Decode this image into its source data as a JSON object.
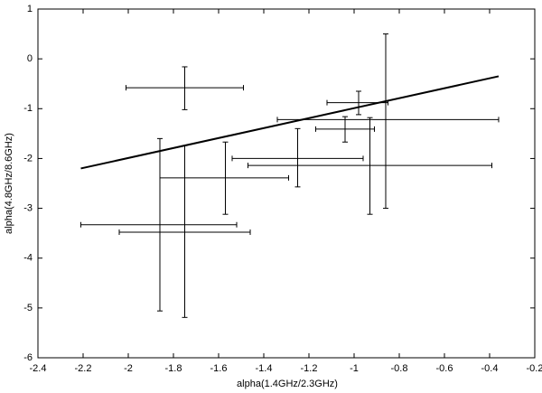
{
  "chart_data": {
    "type": "errorbar",
    "xlabel": "alpha(1.4GHz/2.3GHz)",
    "ylabel": "alpha(4.8GHz/8.6GHz)",
    "xlim": [
      -2.4,
      -0.2
    ],
    "ylim": [
      -6,
      1
    ],
    "xticks": [
      -2.4,
      -2.2,
      -2,
      -1.8,
      -1.6,
      -1.4,
      -1.2,
      -1,
      -0.8,
      -0.6,
      -0.4,
      -0.2
    ],
    "yticks": [
      -6,
      -5,
      -4,
      -3,
      -2,
      -1,
      0,
      1
    ],
    "color": "#000000",
    "x": [
      -1.75,
      -0.98,
      -0.86,
      -1.04,
      -0.93,
      -1.25,
      -1.57,
      -1.86,
      -1.75
    ],
    "y": [
      -0.58,
      -0.88,
      -1.22,
      -1.41,
      -2.14,
      -2.0,
      -2.39,
      -3.33,
      -3.48
    ],
    "xmin": [
      -2.01,
      -1.12,
      -1.34,
      -1.17,
      -1.47,
      -1.54,
      -1.86,
      -2.21,
      -2.04
    ],
    "xmax": [
      -1.49,
      -0.85,
      -0.36,
      -0.91,
      -0.39,
      -0.96,
      -1.29,
      -1.52,
      -1.46
    ],
    "ymin": [
      -1.02,
      -1.12,
      -3.0,
      -1.67,
      -3.12,
      -2.57,
      -3.12,
      -5.06,
      -5.19
    ],
    "ymax": [
      -0.16,
      -0.65,
      0.5,
      -1.16,
      -1.18,
      -1.4,
      -1.67,
      -1.6,
      -1.74
    ],
    "line": {
      "x": [
        -2.21,
        -0.36
      ],
      "y": [
        -2.2,
        -0.35
      ]
    }
  }
}
